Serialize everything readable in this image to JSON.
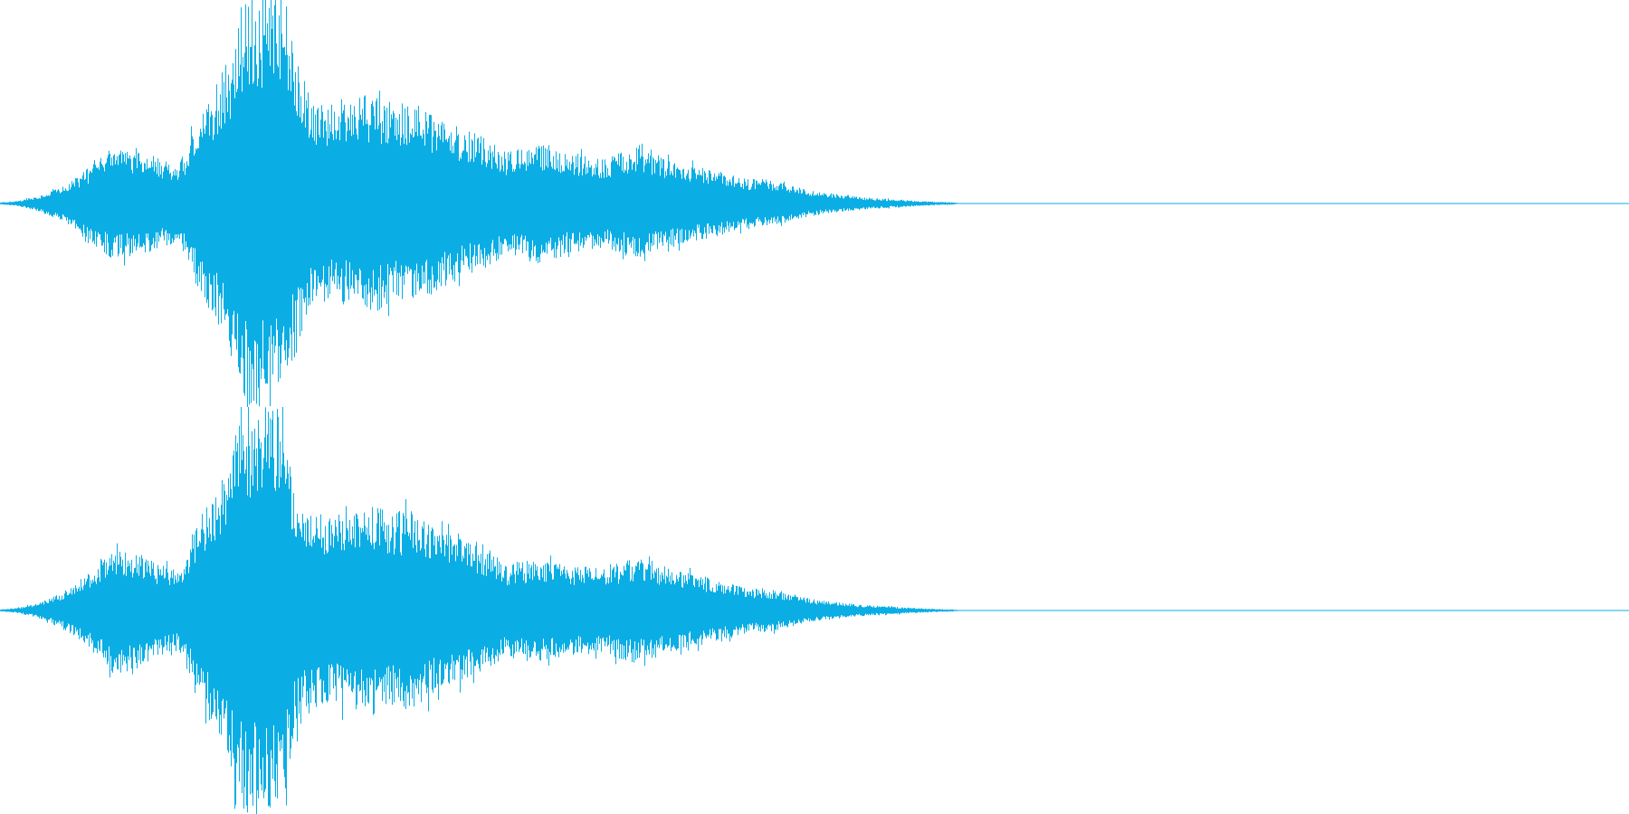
{
  "waveform": {
    "channels": [
      {
        "name": "",
        "envelope": [
          [
            0.0,
            0.005
          ],
          [
            0.01,
            0.012
          ],
          [
            0.02,
            0.03
          ],
          [
            0.03,
            0.06
          ],
          [
            0.04,
            0.09
          ],
          [
            0.05,
            0.15
          ],
          [
            0.06,
            0.22
          ],
          [
            0.07,
            0.28
          ],
          [
            0.08,
            0.26
          ],
          [
            0.09,
            0.25
          ],
          [
            0.1,
            0.22
          ],
          [
            0.11,
            0.2
          ],
          [
            0.115,
            0.28
          ],
          [
            0.12,
            0.4
          ],
          [
            0.13,
            0.55
          ],
          [
            0.14,
            0.72
          ],
          [
            0.145,
            0.85
          ],
          [
            0.15,
            1.0
          ],
          [
            0.16,
            1.0
          ],
          [
            0.17,
            1.0
          ],
          [
            0.175,
            0.9
          ],
          [
            0.18,
            0.78
          ],
          [
            0.19,
            0.55
          ],
          [
            0.2,
            0.48
          ],
          [
            0.21,
            0.5
          ],
          [
            0.22,
            0.52
          ],
          [
            0.23,
            0.55
          ],
          [
            0.24,
            0.5
          ],
          [
            0.25,
            0.52
          ],
          [
            0.26,
            0.48
          ],
          [
            0.27,
            0.42
          ],
          [
            0.28,
            0.38
          ],
          [
            0.29,
            0.35
          ],
          [
            0.3,
            0.32
          ],
          [
            0.31,
            0.25
          ],
          [
            0.32,
            0.28
          ],
          [
            0.33,
            0.3
          ],
          [
            0.34,
            0.28
          ],
          [
            0.35,
            0.25
          ],
          [
            0.36,
            0.24
          ],
          [
            0.37,
            0.22
          ],
          [
            0.38,
            0.25
          ],
          [
            0.39,
            0.27
          ],
          [
            0.4,
            0.25
          ],
          [
            0.41,
            0.22
          ],
          [
            0.42,
            0.2
          ],
          [
            0.43,
            0.18
          ],
          [
            0.44,
            0.16
          ],
          [
            0.45,
            0.14
          ],
          [
            0.46,
            0.12
          ],
          [
            0.47,
            0.12
          ],
          [
            0.48,
            0.1
          ],
          [
            0.49,
            0.08
          ],
          [
            0.5,
            0.06
          ],
          [
            0.51,
            0.05
          ],
          [
            0.52,
            0.04
          ],
          [
            0.53,
            0.03
          ],
          [
            0.54,
            0.025
          ],
          [
            0.55,
            0.02
          ],
          [
            0.56,
            0.015
          ],
          [
            0.57,
            0.01
          ],
          [
            0.585,
            0.006
          ],
          [
            0.59,
            0.0
          ],
          [
            1.0,
            0.0
          ]
        ]
      },
      {
        "name": "",
        "envelope": [
          [
            0.0,
            0.005
          ],
          [
            0.01,
            0.012
          ],
          [
            0.02,
            0.03
          ],
          [
            0.03,
            0.06
          ],
          [
            0.04,
            0.1
          ],
          [
            0.05,
            0.16
          ],
          [
            0.06,
            0.24
          ],
          [
            0.07,
            0.32
          ],
          [
            0.08,
            0.3
          ],
          [
            0.09,
            0.26
          ],
          [
            0.1,
            0.22
          ],
          [
            0.11,
            0.2
          ],
          [
            0.115,
            0.3
          ],
          [
            0.12,
            0.42
          ],
          [
            0.13,
            0.58
          ],
          [
            0.14,
            0.75
          ],
          [
            0.145,
            0.9
          ],
          [
            0.15,
            1.0
          ],
          [
            0.16,
            1.0
          ],
          [
            0.17,
            1.0
          ],
          [
            0.175,
            0.92
          ],
          [
            0.18,
            0.6
          ],
          [
            0.19,
            0.5
          ],
          [
            0.2,
            0.45
          ],
          [
            0.21,
            0.48
          ],
          [
            0.22,
            0.5
          ],
          [
            0.23,
            0.52
          ],
          [
            0.24,
            0.48
          ],
          [
            0.25,
            0.5
          ],
          [
            0.26,
            0.45
          ],
          [
            0.27,
            0.4
          ],
          [
            0.28,
            0.36
          ],
          [
            0.29,
            0.33
          ],
          [
            0.3,
            0.3
          ],
          [
            0.31,
            0.22
          ],
          [
            0.32,
            0.24
          ],
          [
            0.33,
            0.25
          ],
          [
            0.34,
            0.24
          ],
          [
            0.35,
            0.22
          ],
          [
            0.36,
            0.22
          ],
          [
            0.37,
            0.2
          ],
          [
            0.38,
            0.24
          ],
          [
            0.39,
            0.26
          ],
          [
            0.4,
            0.24
          ],
          [
            0.41,
            0.21
          ],
          [
            0.42,
            0.19
          ],
          [
            0.43,
            0.17
          ],
          [
            0.44,
            0.15
          ],
          [
            0.45,
            0.13
          ],
          [
            0.46,
            0.11
          ],
          [
            0.47,
            0.11
          ],
          [
            0.48,
            0.09
          ],
          [
            0.49,
            0.07
          ],
          [
            0.5,
            0.055
          ],
          [
            0.51,
            0.045
          ],
          [
            0.52,
            0.035
          ],
          [
            0.53,
            0.028
          ],
          [
            0.54,
            0.022
          ],
          [
            0.55,
            0.018
          ],
          [
            0.56,
            0.013
          ],
          [
            0.57,
            0.009
          ],
          [
            0.585,
            0.005
          ],
          [
            0.59,
            0.0
          ],
          [
            1.0,
            0.0
          ]
        ]
      }
    ],
    "colors": {
      "wave": "#0aaee5",
      "background": "#ffffff"
    }
  }
}
